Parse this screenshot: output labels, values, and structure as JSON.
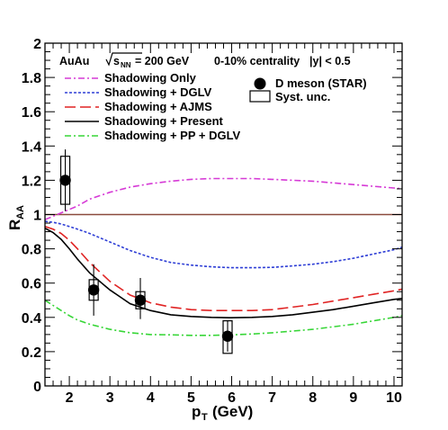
{
  "chart_data": {
    "type": "line",
    "header": {
      "system": "AuAu",
      "energy_prefix": "s",
      "energy_subscript": "NN",
      "energy_value": "= 200 GeV",
      "centrality": "0-10% centrality",
      "rapidity": "|y| < 0.5"
    },
    "xlabel": {
      "main": "p",
      "sub": "T",
      "unit": "(GeV)"
    },
    "ylabel": {
      "main": "R",
      "sub": "AA"
    },
    "xlim": [
      1.4,
      10.2
    ],
    "ylim": [
      0,
      2
    ],
    "xticks": [
      2,
      3,
      4,
      5,
      6,
      7,
      8,
      9,
      10
    ],
    "xtick_labels": [
      "2",
      "3",
      "4",
      "5",
      "6",
      "7",
      "8",
      "9",
      "10"
    ],
    "yticks": [
      0,
      0.2,
      0.4,
      0.6,
      0.8,
      1,
      1.2,
      1.4,
      1.6,
      1.8,
      2
    ],
    "ytick_labels": [
      "0",
      "0.2",
      "0.4",
      "0.6",
      "0.8",
      "1",
      "1.2",
      "1.4",
      "1.6",
      "1.8",
      "2"
    ],
    "reference_line": {
      "y": 1,
      "color": "#8b4a3c"
    },
    "series": [
      {
        "name": "Shadowing Only",
        "color": "#d63ad6",
        "dash": "dashdot",
        "x": [
          1.4,
          1.6,
          1.8,
          2.0,
          2.2,
          2.5,
          3.0,
          3.5,
          4.0,
          4.5,
          5.0,
          5.5,
          6.0,
          6.5,
          7.0,
          7.5,
          8.0,
          8.5,
          9.0,
          9.5,
          10.0,
          10.2
        ],
        "y": [
          0.97,
          0.99,
          1.01,
          1.03,
          1.05,
          1.09,
          1.13,
          1.16,
          1.18,
          1.195,
          1.205,
          1.21,
          1.21,
          1.21,
          1.205,
          1.2,
          1.195,
          1.185,
          1.175,
          1.165,
          1.155,
          1.15
        ]
      },
      {
        "name": "Shadowing + DGLV",
        "color": "#2f3fd6",
        "dash": "dotted",
        "x": [
          1.4,
          1.6,
          1.8,
          2.0,
          2.2,
          2.5,
          3.0,
          3.5,
          4.0,
          4.5,
          5.0,
          5.5,
          6.0,
          6.5,
          7.0,
          7.5,
          8.0,
          8.5,
          9.0,
          9.5,
          10.0,
          10.2
        ],
        "y": [
          0.96,
          0.955,
          0.945,
          0.93,
          0.915,
          0.89,
          0.84,
          0.79,
          0.75,
          0.72,
          0.705,
          0.695,
          0.69,
          0.69,
          0.692,
          0.7,
          0.71,
          0.725,
          0.745,
          0.77,
          0.795,
          0.81
        ]
      },
      {
        "name": "Shadowing + AJMS",
        "color": "#e02424",
        "dash": "dashed",
        "x": [
          1.4,
          1.6,
          1.8,
          2.0,
          2.2,
          2.5,
          3.0,
          3.5,
          4.0,
          4.5,
          5.0,
          5.5,
          6.0,
          6.5,
          7.0,
          7.5,
          8.0,
          8.5,
          9.0,
          9.5,
          10.0,
          10.2
        ],
        "y": [
          0.93,
          0.915,
          0.89,
          0.85,
          0.8,
          0.72,
          0.61,
          0.53,
          0.485,
          0.46,
          0.445,
          0.44,
          0.44,
          0.44,
          0.445,
          0.46,
          0.475,
          0.495,
          0.515,
          0.535,
          0.555,
          0.565
        ]
      },
      {
        "name": "Shadowing + Present",
        "color": "#000000",
        "dash": "solid",
        "x": [
          1.4,
          1.6,
          1.8,
          2.0,
          2.2,
          2.5,
          3.0,
          3.5,
          4.0,
          4.5,
          5.0,
          5.5,
          6.0,
          6.5,
          7.0,
          7.5,
          8.0,
          8.5,
          9.0,
          9.5,
          10.0,
          10.2
        ],
        "y": [
          0.92,
          0.895,
          0.855,
          0.8,
          0.74,
          0.66,
          0.56,
          0.48,
          0.44,
          0.415,
          0.405,
          0.4,
          0.398,
          0.4,
          0.405,
          0.415,
          0.43,
          0.445,
          0.465,
          0.485,
          0.505,
          0.51
        ]
      },
      {
        "name": "Shadowing + PP + DGLV",
        "color": "#37d637",
        "dash": "dashdot",
        "x": [
          1.4,
          1.6,
          1.8,
          2.0,
          2.2,
          2.5,
          3.0,
          3.5,
          4.0,
          4.5,
          5.0,
          5.5,
          6.0,
          6.5,
          7.0,
          7.5,
          8.0,
          8.5,
          9.0,
          9.5,
          10.0,
          10.2
        ],
        "y": [
          0.5,
          0.47,
          0.44,
          0.41,
          0.385,
          0.36,
          0.33,
          0.31,
          0.3,
          0.298,
          0.295,
          0.295,
          0.298,
          0.303,
          0.31,
          0.32,
          0.33,
          0.345,
          0.36,
          0.38,
          0.4,
          0.41
        ]
      }
    ],
    "measurement": {
      "name": "D meson  (STAR)",
      "syst_label": "Syst. unc.",
      "points": [
        {
          "x": 1.9,
          "y": 1.2,
          "stat_lo": 1.02,
          "stat_hi": 1.38,
          "syst_lo": 1.06,
          "syst_hi": 1.34
        },
        {
          "x": 2.6,
          "y": 0.56,
          "stat_lo": 0.41,
          "stat_hi": 0.71,
          "syst_lo": 0.5,
          "syst_hi": 0.62
        },
        {
          "x": 3.75,
          "y": 0.5,
          "stat_lo": 0.39,
          "stat_hi": 0.63,
          "syst_lo": 0.45,
          "syst_hi": 0.55
        },
        {
          "x": 5.9,
          "y": 0.29,
          "stat_lo": 0.2,
          "stat_hi": 0.38,
          "syst_lo": 0.19,
          "syst_hi": 0.38
        }
      ]
    },
    "legend_position": "top"
  }
}
